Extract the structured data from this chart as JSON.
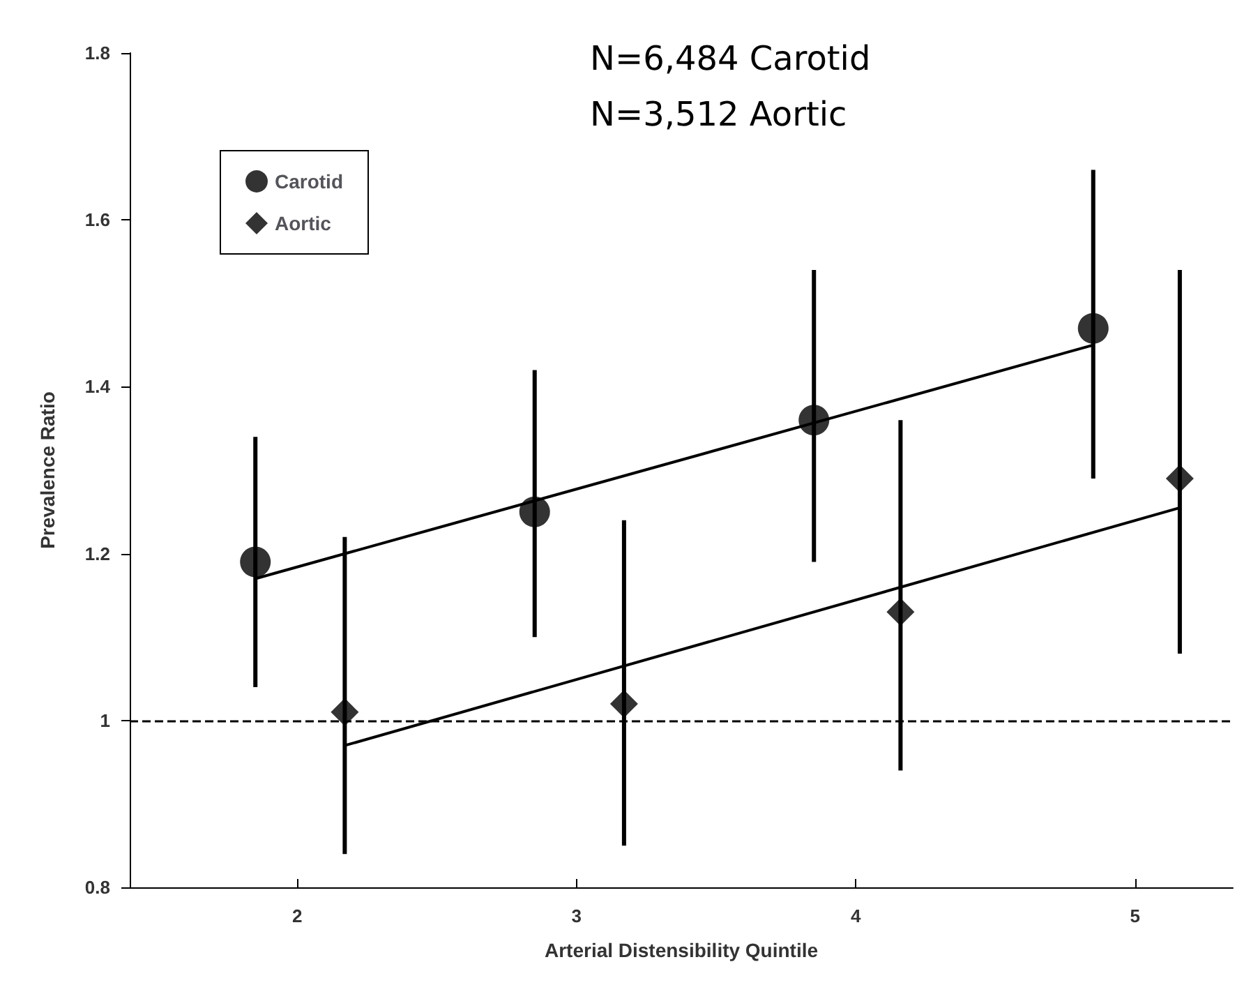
{
  "chart_data": {
    "type": "scatter",
    "xlabel": "Arterial Distensibility Quintile",
    "ylabel": "Prevalence Ratio",
    "xlim": [
      1.4,
      5.35
    ],
    "xticks": [
      2,
      3,
      4,
      5
    ],
    "ylim": [
      0.8,
      1.8
    ],
    "yticks": [
      0.8,
      1,
      1.2,
      1.4,
      1.6,
      1.8
    ],
    "grid": false,
    "legend": "top left",
    "annotations": [
      "N=6,484 Carotid",
      "N=3,512 Aortic"
    ],
    "ref_lines": [
      {
        "axis": "y",
        "value": 1,
        "line_style": "dashed",
        "color": "#000000"
      }
    ],
    "series": [
      {
        "name": "Carotid",
        "marker": "circle",
        "color": "#000000",
        "x": [
          1.85,
          2.85,
          3.85,
          4.85
        ],
        "values": [
          1.19,
          1.25,
          1.36,
          1.47
        ],
        "errors": [
          [
            1.04,
            1.34
          ],
          [
            1.1,
            1.42
          ],
          [
            1.19,
            1.54
          ],
          [
            1.29,
            1.66
          ]
        ]
      },
      {
        "name": "Aortic",
        "marker": "diamond",
        "color": "#000000",
        "x": [
          2.17,
          3.17,
          4.16,
          5.16
        ],
        "values": [
          1.01,
          1.02,
          1.13,
          1.29
        ],
        "errors": [
          [
            0.84,
            1.22
          ],
          [
            0.85,
            1.24
          ],
          [
            0.94,
            1.36
          ],
          [
            1.08,
            1.54
          ]
        ]
      },
      {
        "type": "line",
        "marker": "none",
        "line_style": "solid",
        "color": "#000000",
        "x": [
          1.85,
          4.85
        ],
        "values": [
          1.17,
          1.45
        ]
      },
      {
        "type": "line",
        "marker": "none",
        "line_style": "solid",
        "color": "#000000",
        "x": [
          2.17,
          5.16
        ],
        "values": [
          0.97,
          1.255
        ]
      }
    ]
  }
}
